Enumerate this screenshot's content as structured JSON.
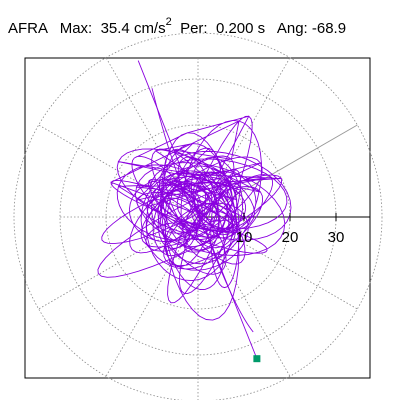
{
  "header": {
    "station": "AFRA",
    "max_label": "Max:",
    "max_value": "35.4",
    "max_unit": "cm/s",
    "max_unit_exp": "2",
    "per_label": "Per:",
    "per_value": "0.200 s",
    "ang_label": "Ang:",
    "ang_value": "-68.9"
  },
  "chart_data": {
    "type": "scatter",
    "title": "AFRA  Max: 35.4 cm/s2  Per: 0.200 s  Ang: -68.9",
    "polar": true,
    "units": "cm/s2",
    "max_amplitude": 35.4,
    "period_s": 0.2,
    "angle_deg": -68.9,
    "rings": [
      10,
      20,
      30,
      40
    ],
    "radial_tick_labels": [
      "10",
      "20",
      "30"
    ],
    "spoke_step_deg": 30,
    "grid": true,
    "trace_color": "#8a00e0",
    "end_marker_color": "#009a6a",
    "end_point": [
      12.8,
      -30.8
    ],
    "pgv_direction_point": [
      -13.0,
      34.0
    ]
  }
}
